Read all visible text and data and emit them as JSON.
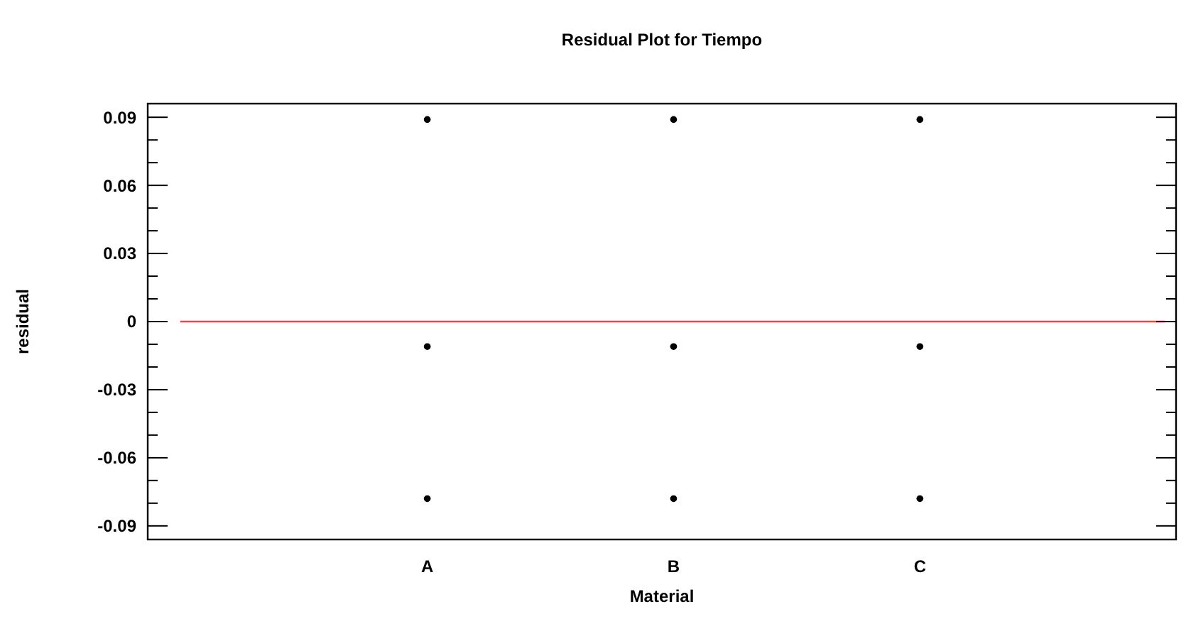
{
  "chart_data": {
    "type": "scatter",
    "title": "Residual Plot for Tiempo",
    "xlabel": "Material",
    "ylabel": "residual",
    "categories": [
      "A",
      "B",
      "C"
    ],
    "series": [
      {
        "color": "#000000",
        "values": [
          0.089,
          0.089,
          0.089
        ]
      },
      {
        "color": "#000000",
        "values": [
          -0.011,
          -0.011,
          -0.011
        ]
      },
      {
        "color": "#000000",
        "values": [
          -0.078,
          -0.078,
          -0.078
        ]
      }
    ],
    "marker": "circle",
    "ylim": [
      -0.096,
      0.096
    ],
    "yticks": [
      {
        "value": -0.09,
        "label": "-0.09"
      },
      {
        "value": -0.08,
        "label": null
      },
      {
        "value": -0.07,
        "label": null
      },
      {
        "value": -0.06,
        "label": "-0.06"
      },
      {
        "value": -0.05,
        "label": null
      },
      {
        "value": -0.04,
        "label": null
      },
      {
        "value": -0.03,
        "label": "-0.03"
      },
      {
        "value": -0.02,
        "label": null
      },
      {
        "value": -0.01,
        "label": null
      },
      0,
      {
        "value": 0.01,
        "label": null
      },
      {
        "value": 0.02,
        "label": null
      },
      {
        "value": 0.03,
        "label": "0.03"
      },
      {
        "value": 0.04,
        "label": null
      },
      {
        "value": 0.05,
        "label": null
      },
      {
        "value": 0.06,
        "label": "0.06"
      },
      {
        "value": 0.07,
        "label": null
      },
      {
        "value": 0.08,
        "label": null
      },
      {
        "value": 0.09,
        "label": "0.09"
      }
    ],
    "ref_lines": [
      {
        "axis": "y",
        "value": 0,
        "color": "#ff4040",
        "line_style": "solid"
      }
    ]
  }
}
